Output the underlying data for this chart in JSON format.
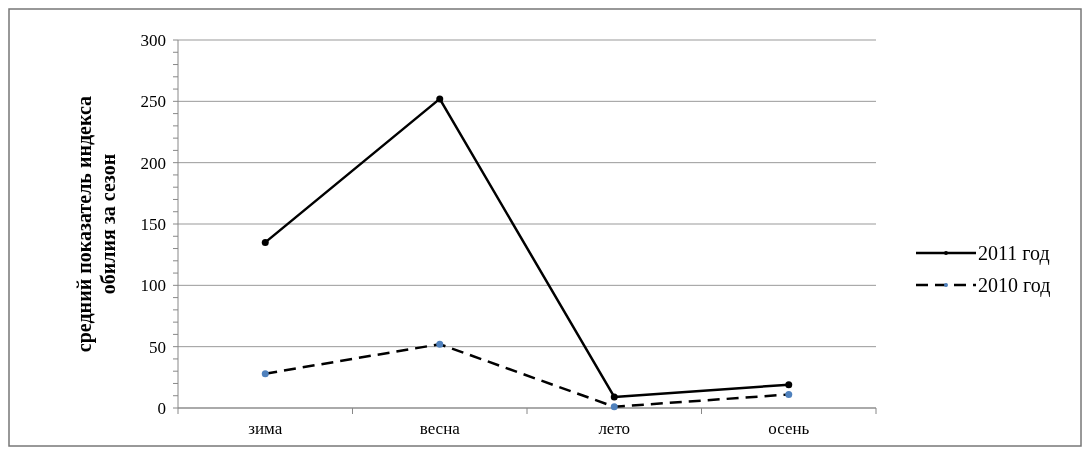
{
  "chart_data": {
    "type": "line",
    "ylabel": "средний показатель индекса\nобилия за сезон",
    "categories": [
      "зима",
      "весна",
      "лето",
      "осень"
    ],
    "series": [
      {
        "name": "2011 год",
        "color": "#000000",
        "values": [
          135,
          252,
          9,
          19
        ],
        "line_style": "solid"
      },
      {
        "name": "2010 год",
        "color": "#000000",
        "values": [
          28,
          52,
          1,
          11
        ],
        "line_style": "dashed"
      }
    ],
    "ylim": [
      0,
      300
    ],
    "yticks": [
      0,
      50,
      100,
      150,
      200,
      250,
      300
    ],
    "grid": "y",
    "legend": "right",
    "marker": "circle"
  }
}
